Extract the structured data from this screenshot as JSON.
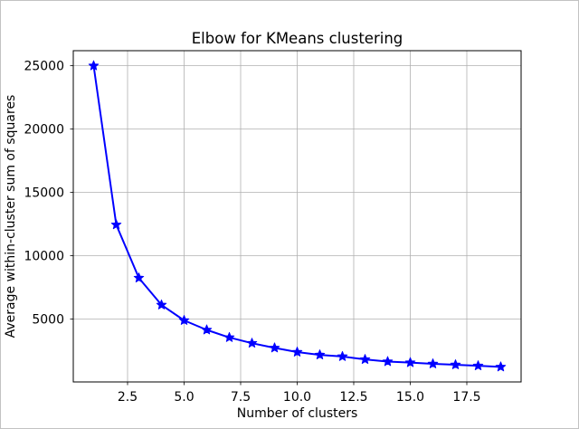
{
  "window": {
    "background": "#ffffff",
    "border_color": "#c2c2c2"
  },
  "chart_data": {
    "type": "line",
    "title": "Elbow for KMeans clustering",
    "xlabel": "Number of clusters",
    "ylabel": "Average within-cluster sum of squares",
    "x": [
      1,
      2,
      3,
      4,
      5,
      6,
      7,
      8,
      9,
      10,
      11,
      12,
      13,
      14,
      15,
      16,
      17,
      18,
      19
    ],
    "series": [
      {
        "name": "average-within-cluster-sum-of-squares",
        "color": "#0000ff",
        "marker": "star",
        "values": [
          25000,
          12450,
          8250,
          6120,
          4900,
          4150,
          3550,
          3100,
          2730,
          2400,
          2180,
          2050,
          1820,
          1650,
          1570,
          1470,
          1400,
          1320,
          1230
        ]
      }
    ],
    "xlim": [
      0.1,
      19.9
    ],
    "ylim": [
      42,
      26188
    ],
    "xticks": {
      "values": [
        2.5,
        5.0,
        7.5,
        10.0,
        12.5,
        15.0,
        17.5
      ],
      "labels": [
        "2.5",
        "5.0",
        "7.5",
        "10.0",
        "12.5",
        "15.0",
        "17.5"
      ]
    },
    "yticks": {
      "values": [
        5000,
        10000,
        15000,
        20000,
        25000
      ],
      "labels": [
        "5000",
        "10000",
        "15000",
        "20000",
        "25000"
      ]
    },
    "grid": true,
    "grid_color": "#b0b0b0",
    "spine_color": "#000000",
    "tick_color": "#000000",
    "legend": null
  }
}
